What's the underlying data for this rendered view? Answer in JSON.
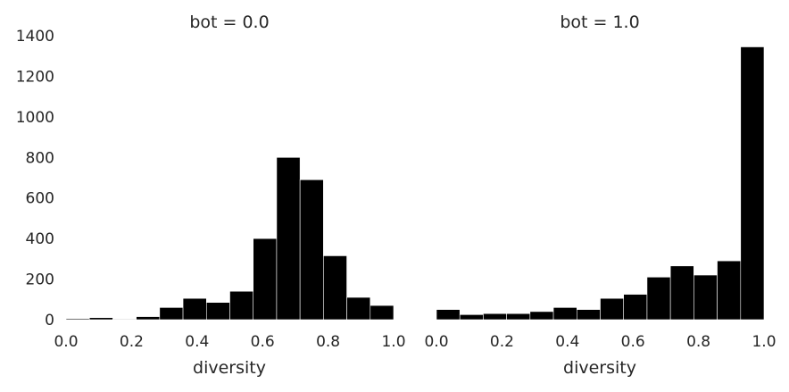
{
  "chart_data": [
    {
      "type": "bar",
      "title": "bot = 0.0",
      "xlabel": "diversity",
      "ylabel": "",
      "xlim": [
        0.0,
        1.0
      ],
      "ylim": [
        0,
        1400
      ],
      "xticks": [
        "0.0",
        "0.2",
        "0.4",
        "0.6",
        "0.8",
        "1.0"
      ],
      "yticks": [
        "0",
        "200",
        "400",
        "600",
        "800",
        "1000",
        "1200",
        "1400"
      ],
      "bin_edges": [
        0.0,
        0.0714,
        0.1429,
        0.2143,
        0.2857,
        0.3571,
        0.4286,
        0.5,
        0.5714,
        0.6429,
        0.7143,
        0.7857,
        0.8571,
        0.9286,
        1.0
      ],
      "values": [
        5,
        10,
        3,
        15,
        60,
        105,
        85,
        140,
        400,
        800,
        690,
        315,
        110,
        70
      ],
      "grid": false
    },
    {
      "type": "bar",
      "title": "bot = 1.0",
      "xlabel": "diversity",
      "ylabel": "",
      "xlim": [
        0.0,
        1.0
      ],
      "ylim": [
        0,
        1400
      ],
      "xticks": [
        "0.0",
        "0.2",
        "0.4",
        "0.6",
        "0.8",
        "1.0"
      ],
      "bin_edges": [
        0.0,
        0.0714,
        0.1429,
        0.2143,
        0.2857,
        0.3571,
        0.4286,
        0.5,
        0.5714,
        0.6429,
        0.7143,
        0.7857,
        0.8571,
        0.9286,
        1.0
      ],
      "values": [
        50,
        25,
        30,
        30,
        40,
        60,
        50,
        105,
        125,
        210,
        265,
        220,
        290,
        1345
      ],
      "grid": false
    }
  ]
}
